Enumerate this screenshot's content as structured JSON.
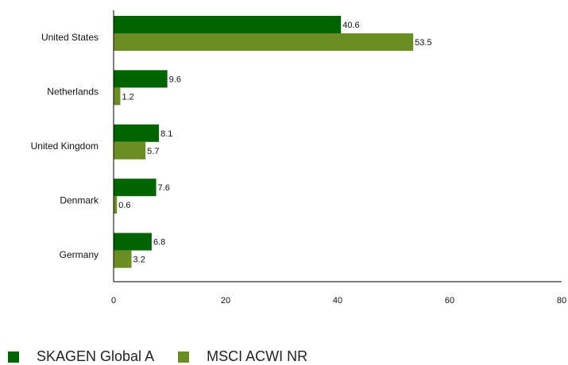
{
  "chart_data": {
    "type": "bar",
    "orientation": "horizontal",
    "categories": [
      "United States",
      "Netherlands",
      "United Kingdom",
      "Denmark",
      "Germany"
    ],
    "series": [
      {
        "name": "SKAGEN Global A",
        "color": "#006400",
        "values": [
          40.6,
          9.6,
          8.1,
          7.6,
          6.8
        ]
      },
      {
        "name": "MSCI ACWI NR",
        "color": "#6b8e23",
        "values": [
          53.5,
          1.2,
          5.7,
          0.6,
          3.2
        ]
      }
    ],
    "xlim": [
      0,
      80
    ],
    "xticks": [
      "0",
      "20",
      "40",
      "60",
      "80"
    ],
    "grid": false,
    "legend_position": "bottom-left",
    "show_data_labels": true
  }
}
